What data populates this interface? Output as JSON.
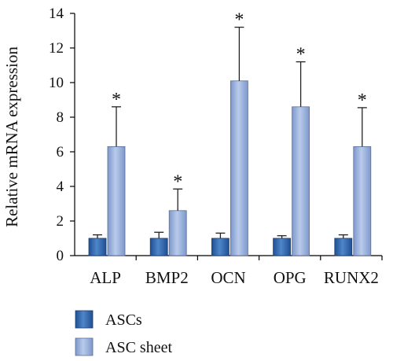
{
  "chart_data": {
    "type": "bar",
    "title": "",
    "xlabel": "",
    "ylabel": "Relative mRNA expression",
    "ylim": [
      0,
      14
    ],
    "yticks": [
      0,
      2,
      4,
      6,
      8,
      10,
      12,
      14
    ],
    "categories": [
      "ALP",
      "BMP2",
      "OCN",
      "OPG",
      "RUNX2"
    ],
    "series": [
      {
        "name": "ASCs",
        "values": [
          1.0,
          1.0,
          1.0,
          1.0,
          1.0
        ],
        "error": [
          0.2,
          0.35,
          0.3,
          0.15,
          0.2
        ],
        "color": "#2f64a8"
      },
      {
        "name": "ASC sheet",
        "values": [
          6.3,
          2.6,
          10.1,
          8.6,
          6.3
        ],
        "error": [
          2.3,
          1.25,
          3.1,
          2.6,
          2.25
        ],
        "color": "#8fa9d6"
      }
    ],
    "annotations": [
      "*",
      "*",
      "*",
      "*",
      "*"
    ],
    "legend_position": "bottom-left",
    "grid": false
  }
}
